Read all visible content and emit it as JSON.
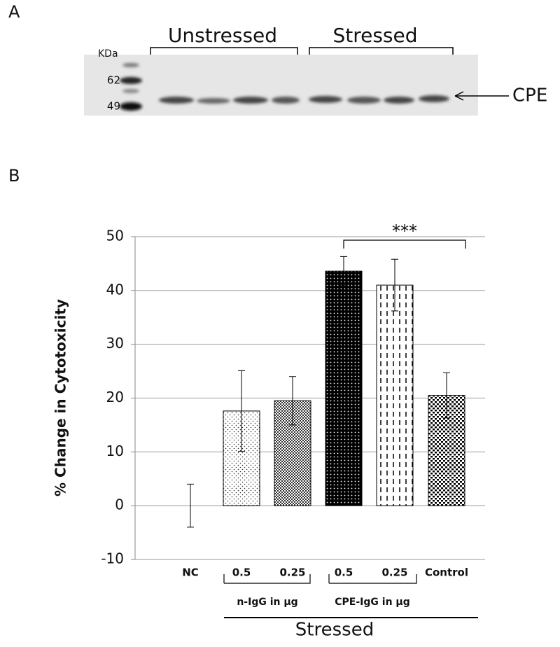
{
  "panel_labels": [
    "A",
    "B"
  ],
  "blot": {
    "kda_label": "KDa",
    "markers": [
      "62",
      "49"
    ],
    "groups": [
      "Unstressed",
      "Stressed"
    ],
    "band_label": "CPE"
  },
  "chart_data": {
    "type": "bar",
    "ylabel": "% Change in Cytotoxicity",
    "categories": [
      "NC",
      "0.5",
      "0.25",
      "0.5",
      "0.25",
      "Control"
    ],
    "values": [
      0,
      17.6,
      19.5,
      43.6,
      41.0,
      20.5
    ],
    "errors": [
      4,
      7.5,
      4.5,
      2.7,
      4.8,
      4.2
    ],
    "ylim": [
      -10,
      50
    ],
    "yticks": [
      -10,
      0,
      10,
      20,
      30,
      40,
      50
    ],
    "grid": true,
    "group_labels": [
      "n-IgG in μg",
      "CPE-IgG in μg"
    ],
    "outer_label": "Stressed",
    "annotation": "***"
  }
}
